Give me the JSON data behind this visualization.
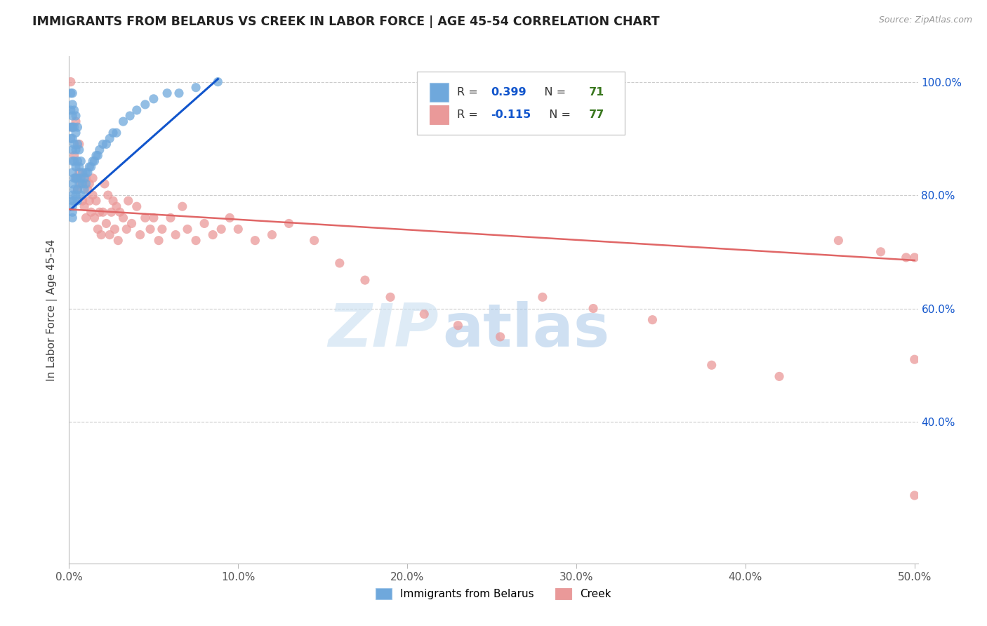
{
  "title": "IMMIGRANTS FROM BELARUS VS CREEK IN LABOR FORCE | AGE 45-54 CORRELATION CHART",
  "source": "Source: ZipAtlas.com",
  "ylabel": "In Labor Force | Age 45-54",
  "xlim": [
    0.0,
    0.502
  ],
  "ylim": [
    0.15,
    1.045
  ],
  "ytick_vals": [
    0.4,
    0.6,
    0.8,
    1.0
  ],
  "ytick_labels": [
    "40.0%",
    "60.0%",
    "80.0%",
    "100.0%"
  ],
  "xtick_vals": [
    0.0,
    0.1,
    0.2,
    0.3,
    0.4,
    0.5
  ],
  "xtick_labels": [
    "0.0%",
    "10.0%",
    "20.0%",
    "30.0%",
    "40.0%",
    "50.0%"
  ],
  "belarus_R": "0.399",
  "belarus_N": "71",
  "creek_R": "-0.115",
  "creek_N": "77",
  "belarus_color": "#6fa8dc",
  "creek_color": "#ea9999",
  "belarus_line_color": "#1155cc",
  "creek_line_color": "#e06666",
  "R_color": "#1155cc",
  "N_color": "#38761d",
  "watermark_zip": "ZIP",
  "watermark_atlas": "atlas",
  "background_color": "#ffffff",
  "belarus_x": [
    0.001,
    0.001,
    0.001,
    0.001,
    0.002,
    0.002,
    0.002,
    0.002,
    0.002,
    0.002,
    0.002,
    0.002,
    0.002,
    0.002,
    0.002,
    0.002,
    0.002,
    0.002,
    0.003,
    0.003,
    0.003,
    0.003,
    0.003,
    0.003,
    0.003,
    0.004,
    0.004,
    0.004,
    0.004,
    0.004,
    0.004,
    0.005,
    0.005,
    0.005,
    0.005,
    0.005,
    0.005,
    0.006,
    0.006,
    0.006,
    0.007,
    0.007,
    0.007,
    0.008,
    0.008,
    0.009,
    0.009,
    0.01,
    0.01,
    0.011,
    0.012,
    0.013,
    0.014,
    0.015,
    0.016,
    0.017,
    0.018,
    0.02,
    0.022,
    0.024,
    0.026,
    0.028,
    0.032,
    0.036,
    0.04,
    0.045,
    0.05,
    0.058,
    0.065,
    0.075,
    0.088
  ],
  "belarus_y": [
    0.98,
    0.95,
    0.92,
    0.9,
    0.98,
    0.96,
    0.94,
    0.92,
    0.9,
    0.88,
    0.86,
    0.84,
    0.82,
    0.8,
    0.79,
    0.78,
    0.77,
    0.76,
    0.95,
    0.92,
    0.89,
    0.86,
    0.83,
    0.81,
    0.79,
    0.94,
    0.91,
    0.88,
    0.85,
    0.83,
    0.8,
    0.92,
    0.89,
    0.86,
    0.83,
    0.81,
    0.79,
    0.88,
    0.85,
    0.82,
    0.86,
    0.83,
    0.8,
    0.84,
    0.82,
    0.83,
    0.81,
    0.84,
    0.82,
    0.84,
    0.85,
    0.85,
    0.86,
    0.86,
    0.87,
    0.87,
    0.88,
    0.89,
    0.89,
    0.9,
    0.91,
    0.91,
    0.93,
    0.94,
    0.95,
    0.96,
    0.97,
    0.98,
    0.98,
    0.99,
    1.0
  ],
  "creek_x": [
    0.001,
    0.002,
    0.003,
    0.004,
    0.004,
    0.005,
    0.006,
    0.006,
    0.007,
    0.008,
    0.009,
    0.01,
    0.01,
    0.011,
    0.012,
    0.012,
    0.013,
    0.014,
    0.014,
    0.015,
    0.016,
    0.017,
    0.018,
    0.019,
    0.02,
    0.021,
    0.022,
    0.023,
    0.024,
    0.025,
    0.026,
    0.027,
    0.028,
    0.029,
    0.03,
    0.032,
    0.034,
    0.035,
    0.037,
    0.04,
    0.042,
    0.045,
    0.048,
    0.05,
    0.053,
    0.055,
    0.06,
    0.063,
    0.067,
    0.07,
    0.075,
    0.08,
    0.085,
    0.09,
    0.095,
    0.1,
    0.11,
    0.12,
    0.13,
    0.145,
    0.16,
    0.175,
    0.19,
    0.21,
    0.23,
    0.255,
    0.28,
    0.31,
    0.345,
    0.38,
    0.42,
    0.455,
    0.48,
    0.495,
    0.5,
    0.5,
    0.5
  ],
  "creek_y": [
    1.0,
    0.92,
    0.87,
    0.83,
    0.93,
    0.81,
    0.84,
    0.89,
    0.82,
    0.79,
    0.78,
    0.83,
    0.76,
    0.81,
    0.79,
    0.82,
    0.77,
    0.8,
    0.83,
    0.76,
    0.79,
    0.74,
    0.77,
    0.73,
    0.77,
    0.82,
    0.75,
    0.8,
    0.73,
    0.77,
    0.79,
    0.74,
    0.78,
    0.72,
    0.77,
    0.76,
    0.74,
    0.79,
    0.75,
    0.78,
    0.73,
    0.76,
    0.74,
    0.76,
    0.72,
    0.74,
    0.76,
    0.73,
    0.78,
    0.74,
    0.72,
    0.75,
    0.73,
    0.74,
    0.76,
    0.74,
    0.72,
    0.73,
    0.75,
    0.72,
    0.68,
    0.65,
    0.62,
    0.59,
    0.57,
    0.55,
    0.62,
    0.6,
    0.58,
    0.5,
    0.48,
    0.72,
    0.7,
    0.69,
    0.69,
    0.51,
    0.27
  ],
  "creek_line_x0": 0.0,
  "creek_line_x1": 0.5,
  "creek_line_y0": 0.775,
  "creek_line_y1": 0.685,
  "belarus_line_x0": 0.001,
  "belarus_line_x1": 0.088,
  "belarus_line_y0": 0.775,
  "belarus_line_y1": 1.005
}
